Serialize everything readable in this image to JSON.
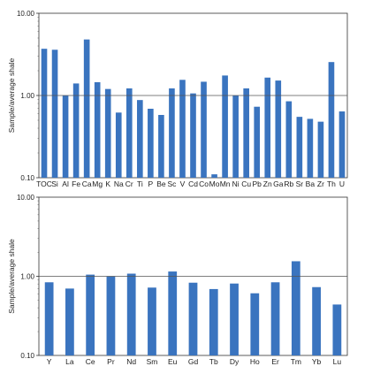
{
  "chart_data": [
    {
      "type": "bar",
      "ylabel": "Sample/average shale",
      "yscale": "log",
      "ylim": [
        0.1,
        10
      ],
      "yticks": [
        "0.10",
        "1.00",
        "10.00"
      ],
      "reference_line": 1,
      "bar_color": "#3a74bf",
      "categories": [
        "TOC",
        "Si",
        "Al",
        "Fe",
        "Ca",
        "Mg",
        "K",
        "Na",
        "Cr",
        "Ti",
        "P",
        "Be",
        "Sc",
        "V",
        "Cd",
        "Co",
        "Mo",
        "Mn",
        "Ni",
        "Cu",
        "Pb",
        "Zn",
        "Ga",
        "Rb",
        "Sr",
        "Ba",
        "Zr",
        "Th",
        "U"
      ],
      "values": [
        3.7,
        3.6,
        1.0,
        1.4,
        4.8,
        1.45,
        1.2,
        0.62,
        1.22,
        0.88,
        0.69,
        0.58,
        1.22,
        1.55,
        1.06,
        1.47,
        0.11,
        1.75,
        1.0,
        1.22,
        0.73,
        1.65,
        1.52,
        0.85,
        0.55,
        0.52,
        0.48,
        2.55,
        0.64
      ]
    },
    {
      "type": "bar",
      "ylabel": "Sample/average shale",
      "yscale": "log",
      "ylim": [
        0.1,
        10
      ],
      "yticks": [
        "0.10",
        "1.00",
        "10.00"
      ],
      "reference_line": 1,
      "bar_color": "#3a74bf",
      "categories": [
        "Y",
        "La",
        "Ce",
        "Pr",
        "Nd",
        "Sm",
        "Eu",
        "Gd",
        "Tb",
        "Dy",
        "Ho",
        "Er",
        "Tm",
        "Yb",
        "Lu"
      ],
      "values": [
        0.84,
        0.7,
        1.05,
        1.0,
        1.08,
        0.72,
        1.15,
        0.83,
        0.69,
        0.81,
        0.61,
        0.84,
        1.55,
        0.73,
        0.44
      ]
    }
  ]
}
